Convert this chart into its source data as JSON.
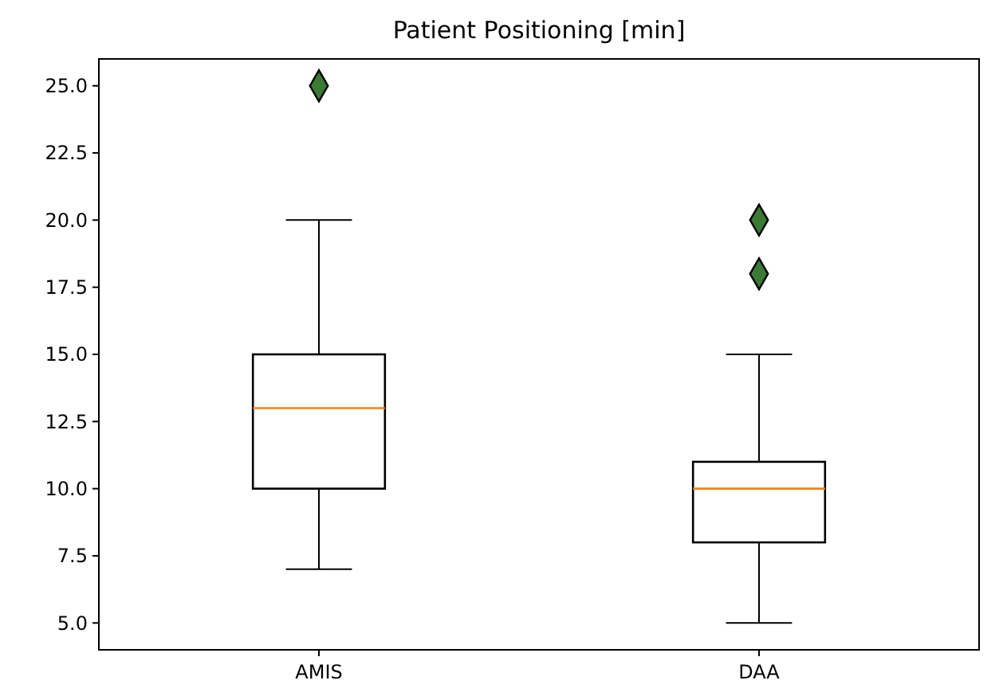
{
  "chart_data": {
    "type": "box",
    "title": "Patient Positioning [min]",
    "categories": [
      "AMIS",
      "DAA"
    ],
    "boxes": [
      {
        "low": 7,
        "q1": 10,
        "median": 13,
        "q3": 15,
        "high": 20,
        "outliers": [
          25
        ]
      },
      {
        "low": 5,
        "q1": 8,
        "median": 10,
        "q3": 11,
        "high": 15,
        "outliers": [
          18,
          20
        ]
      }
    ],
    "marker": "diamond",
    "ylim": [
      4,
      26
    ],
    "yticks": [
      {
        "value": 5,
        "label": "5.0"
      },
      {
        "value": 7.5,
        "label": "7.5"
      },
      {
        "value": 10,
        "label": "10.0"
      },
      {
        "value": 12.5,
        "label": "12.5"
      },
      {
        "value": 15,
        "label": "15.0"
      },
      {
        "value": 17.5,
        "label": "17.5"
      },
      {
        "value": 20,
        "label": "20.0"
      },
      {
        "value": 22.5,
        "label": "22.5"
      },
      {
        "value": 25,
        "label": "25.0"
      }
    ],
    "grid": false
  }
}
